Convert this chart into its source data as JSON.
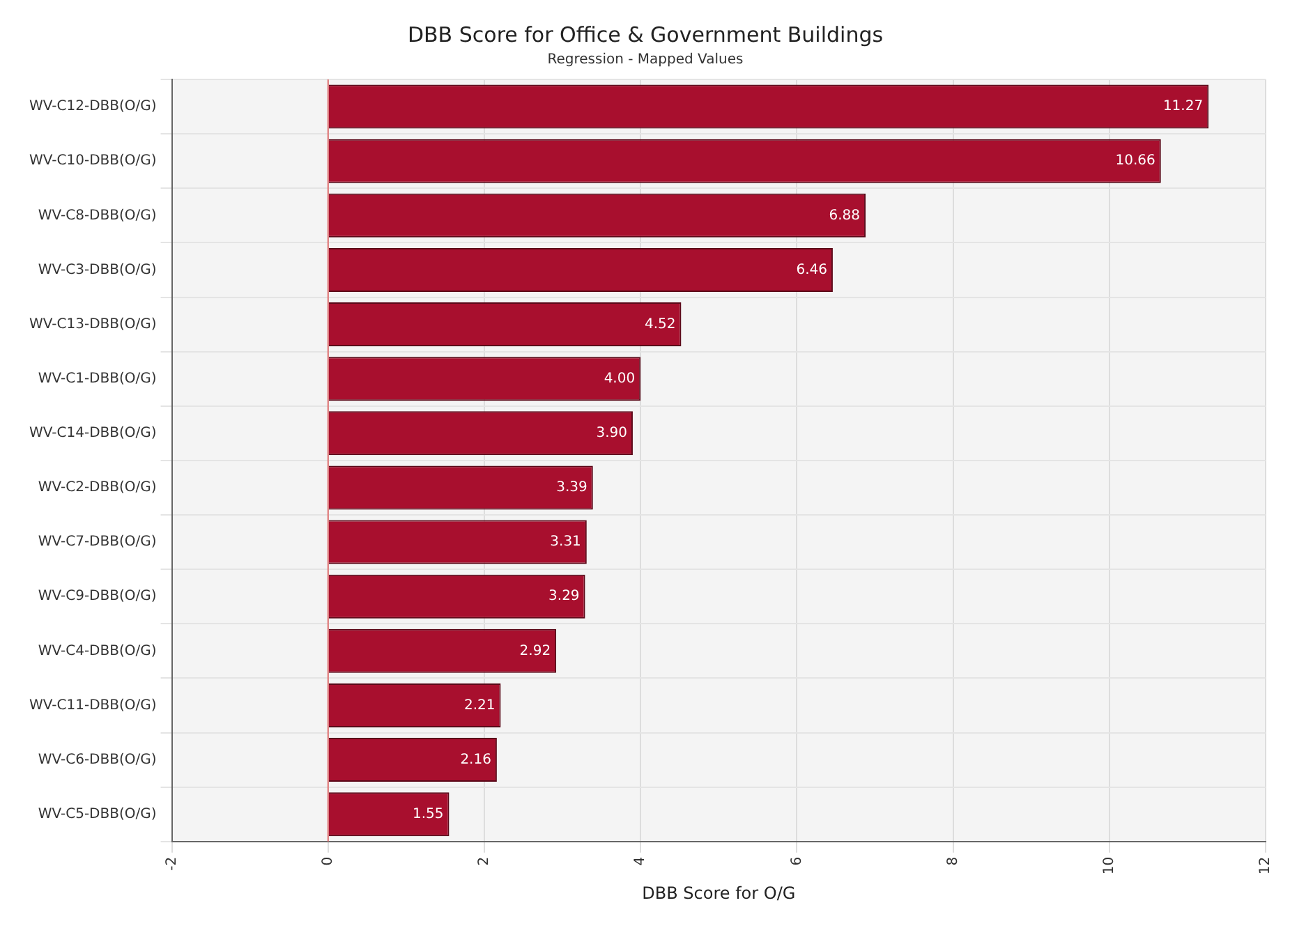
{
  "chart_data": {
    "type": "bar",
    "orientation": "horizontal",
    "title": "DBB Score for Office & Government Buildings",
    "subtitle": "Regression - Mapped Values",
    "xlabel": "DBB Score for O/G",
    "categories": [
      "WV-C12-DBB(O/G)",
      "WV-C10-DBB(O/G)",
      "WV-C8-DBB(O/G)",
      "WV-C3-DBB(O/G)",
      "WV-C13-DBB(O/G)",
      "WV-C1-DBB(O/G)",
      "WV-C14-DBB(O/G)",
      "WV-C2-DBB(O/G)",
      "WV-C7-DBB(O/G)",
      "WV-C9-DBB(O/G)",
      "WV-C4-DBB(O/G)",
      "WV-C11-DBB(O/G)",
      "WV-C6-DBB(O/G)",
      "WV-C5-DBB(O/G)"
    ],
    "values": [
      11.27,
      10.66,
      6.88,
      6.46,
      4.52,
      4.0,
      3.9,
      3.39,
      3.31,
      3.29,
      2.92,
      2.21,
      2.16,
      1.55
    ],
    "value_labels": [
      "11.27",
      "10.66",
      "6.88",
      "6.46",
      "4.52",
      "4.00",
      "3.90",
      "3.39",
      "3.31",
      "3.29",
      "2.92",
      "2.21",
      "2.16",
      "1.55"
    ],
    "color": "#a80f2e",
    "xlim": [
      -2,
      12
    ],
    "xticks": [
      -2,
      0,
      2,
      4,
      6,
      8,
      10,
      12
    ],
    "grid": true,
    "legend": false,
    "ref_lines": [
      {
        "axis": "x",
        "value": 0,
        "color": "#e07070"
      }
    ]
  }
}
